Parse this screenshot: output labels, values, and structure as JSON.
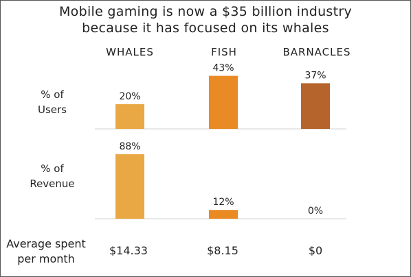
{
  "title_line1": "Mobile gaming is now a $35 billion industry",
  "title_line2": "because it has focused on its whales",
  "categories": [
    "WHALES",
    "FISH",
    "BARNACLES"
  ],
  "colors": [
    "#e9a843",
    "#ea8a25",
    "#b5652c"
  ],
  "users_label_1": "% of",
  "users_label_2": "Users",
  "revenue_label_1": "% of",
  "revenue_label_2": "Revenue",
  "spent_label_1": "Average spent",
  "spent_label_2": "per month",
  "spent_values": [
    "$14.33",
    "$8.15",
    "$0"
  ],
  "chart_data": [
    {
      "type": "bar",
      "name": "% of Users",
      "categories": [
        "WHALES",
        "FISH",
        "BARNACLES"
      ],
      "values": [
        20,
        43,
        37
      ],
      "data_labels": [
        "20%",
        "43%",
        "37%"
      ],
      "ylabel": "% of Users"
    },
    {
      "type": "bar",
      "name": "% of Revenue",
      "categories": [
        "WHALES",
        "FISH",
        "BARNACLES"
      ],
      "values": [
        88,
        12,
        0
      ],
      "data_labels": [
        "88%",
        "12%",
        "0%"
      ],
      "ylabel": "% of Revenue"
    }
  ]
}
